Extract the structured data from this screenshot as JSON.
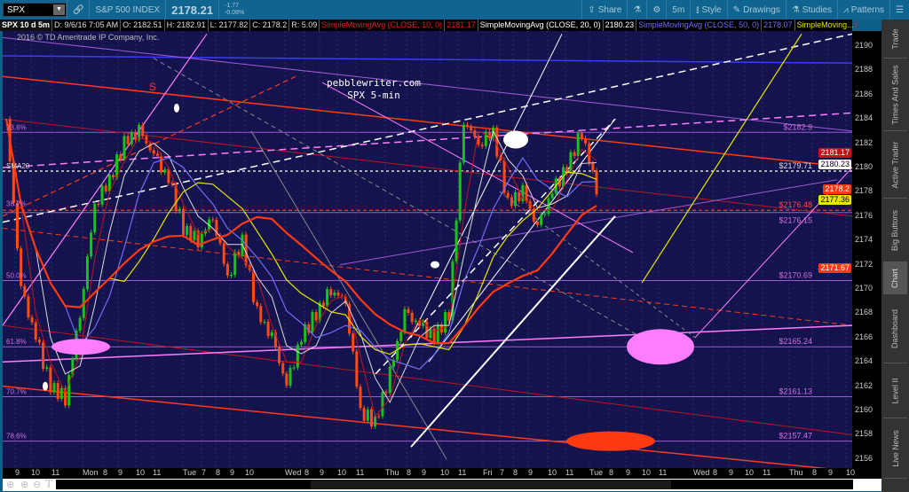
{
  "toolbar": {
    "symbol": "SPX",
    "instrument": "S&P 500 INDEX",
    "last": "2178.21",
    "change": "-1.77",
    "change_pct": "-0.08%",
    "buttons": [
      {
        "label": "Share",
        "icon": "share-icon"
      },
      {
        "label": "",
        "icon": "flask-icon"
      },
      {
        "label": "",
        "icon": "gear-icon"
      },
      {
        "label": "5m",
        "icon": ""
      },
      {
        "label": "Style",
        "icon": "candles-icon"
      },
      {
        "label": "Drawings",
        "icon": "pencil-icon"
      },
      {
        "label": "Studies",
        "icon": "flask-icon"
      },
      {
        "label": "Patterns",
        "icon": "pattern-icon"
      },
      {
        "label": "",
        "icon": "menu-icon"
      }
    ]
  },
  "infobar": {
    "title": "SPX 10 d 5m",
    "date": "D: 9/6/16 7:05 AM",
    "open": "O: 2182.51",
    "high": "H: 2182.91",
    "low": "L: 2177.82",
    "close": "C: 2178.2",
    "range": "R: 5.09",
    "studies": [
      {
        "name": "SimpleMovingAvg (CLOSE, 10, 0)",
        "value": "2181.17",
        "color": "#e0211b"
      },
      {
        "name": "SimpleMovingAvg (CLOSE, 20, 0)",
        "value": "2180.23",
        "color": "#ffffff"
      },
      {
        "name": "SimpleMovingAvg (CLOSE, 50, 0)",
        "value": "2178.07",
        "color": "#6f6ff5"
      },
      {
        "name": "SimpleMoving...",
        "value": "",
        "color": "#e6e600"
      }
    ]
  },
  "copyright": "2016 © TD Ameritrade IP Company, Inc.",
  "watermark": {
    "line1": "pebblewriter.com",
    "line2": "SPX 5-min"
  },
  "annotation_s": "S",
  "fib_left": [
    "23.6%",
    "SMA20",
    "38.2%",
    "50.0%",
    "61.8%",
    "70.7%",
    "78.6%"
  ],
  "fib_right": [
    "$2182.9",
    "$2179.71",
    "$2176.48",
    "$2176.15",
    "$2170.69",
    "$2165.24",
    "$2161.13",
    "$2157.47"
  ],
  "price_axis": {
    "ticks": [
      "2190",
      "2188",
      "2186",
      "2184",
      "2182",
      "2180",
      "2178",
      "2176",
      "2174",
      "2172",
      "2170",
      "2168",
      "2166",
      "2164",
      "2162",
      "2160",
      "2158",
      "2156"
    ],
    "labels": [
      {
        "value": "2181.17",
        "bg": "#c0141b",
        "fg": "#ffffff"
      },
      {
        "value": "2180.23",
        "bg": "#ffffff",
        "fg": "#000000"
      },
      {
        "value": "2178.2",
        "bg": "#ff3a12",
        "fg": "#ffffff"
      },
      {
        "value": "2177.36",
        "bg": "#e6e600",
        "fg": "#000000"
      },
      {
        "value": "2171.67",
        "bg": "#ff3a12",
        "fg": "#ffffff"
      }
    ]
  },
  "time_axis": [
    "9",
    "10",
    "11",
    "Mon",
    "8",
    "9",
    "10",
    "11",
    "Tue",
    "7",
    "8",
    "9",
    "10",
    "Wed",
    "8",
    "9",
    "10",
    "11",
    "Thu",
    "8",
    "9",
    "10",
    "11",
    "Fri",
    "7",
    "8",
    "9",
    "10",
    "11",
    "Tue",
    "8",
    "9",
    "10",
    "11",
    "Wed",
    "8",
    "9",
    "10",
    "11",
    "Thu",
    "8",
    "9",
    "10"
  ],
  "side_tabs": [
    "Trade",
    "Times And Sales",
    "Active Trader",
    "Big Buttons",
    "Chart",
    "Dashboard",
    "Level II",
    "Live News"
  ],
  "chart_data": {
    "type": "candlestick",
    "symbol": "SPX",
    "interval": "5m",
    "ylim": [
      2155,
      2191
    ],
    "closes": [
      2184,
      2170,
      2166,
      2162,
      2161,
      2168,
      2177,
      2179,
      2182,
      2183,
      2181,
      2179,
      2175,
      2174,
      2176,
      2171,
      2174,
      2168,
      2166,
      2162,
      2166,
      2168,
      2170,
      2169,
      2160,
      2159,
      2163,
      2168,
      2167,
      2166,
      2168,
      2184,
      2182,
      2183,
      2177,
      2178,
      2175,
      2178,
      2180,
      2183,
      2178.2
    ]
  }
}
